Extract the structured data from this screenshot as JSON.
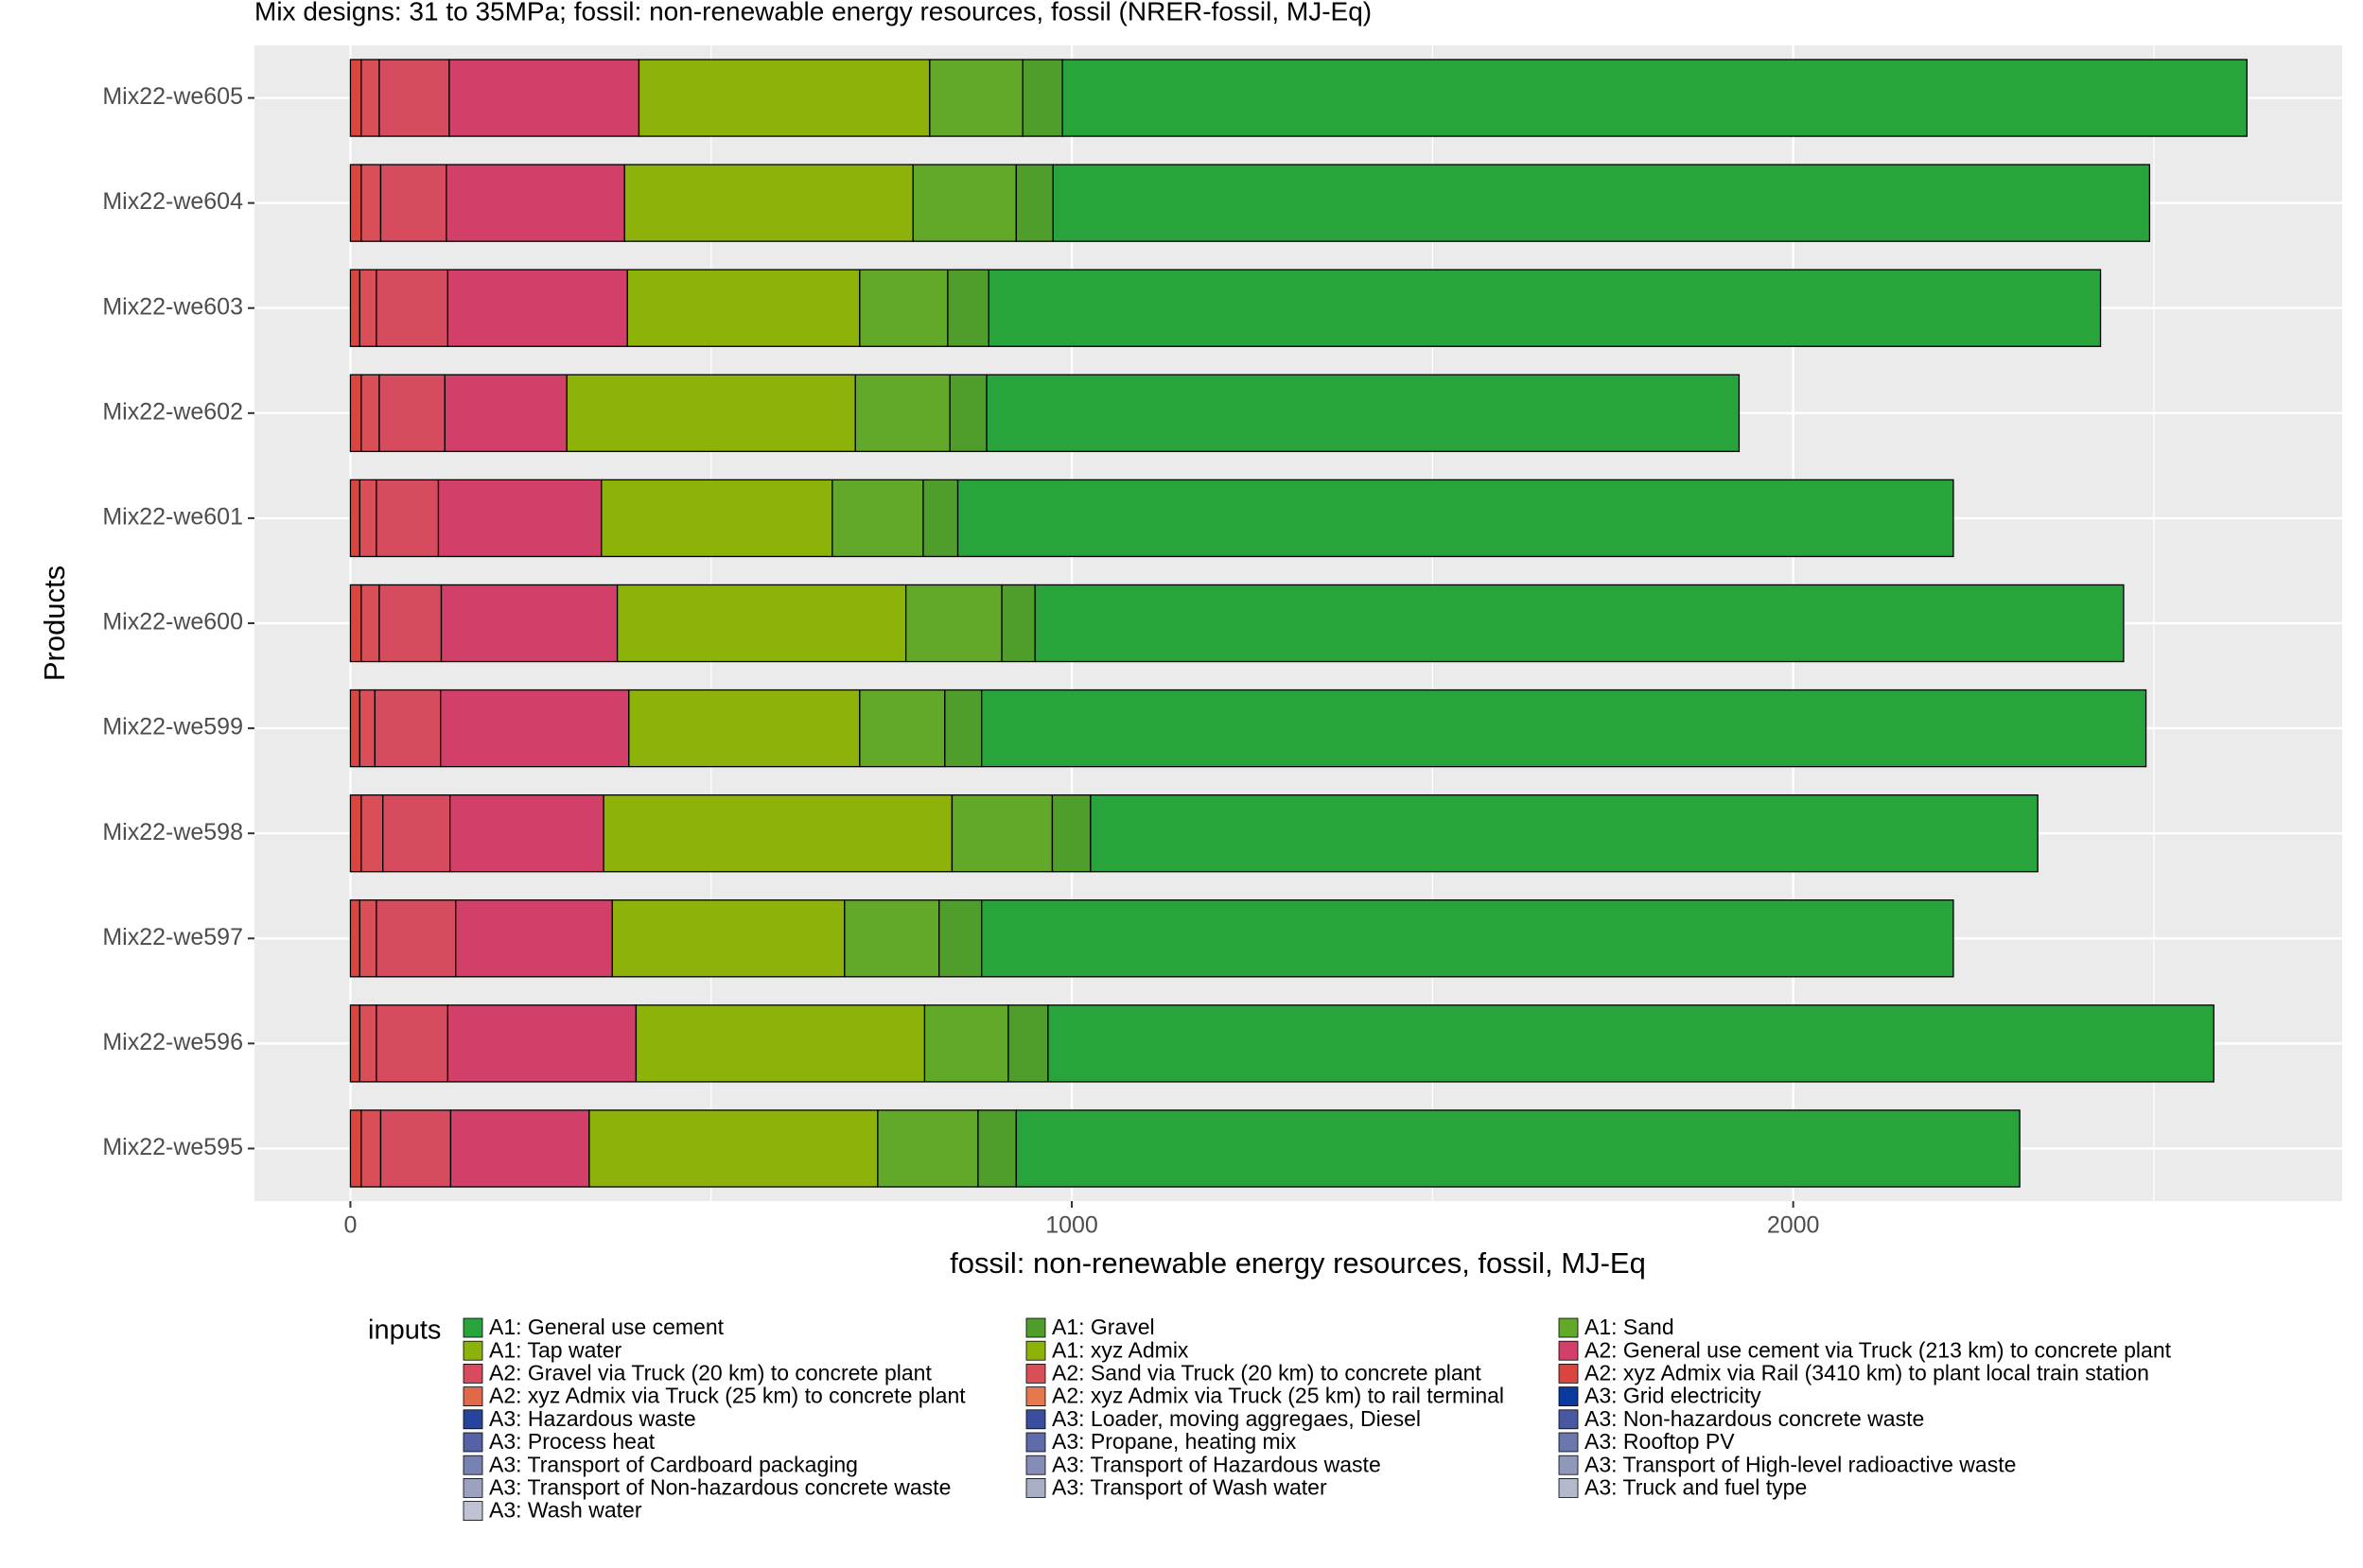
{
  "chart_data": {
    "type": "stacked-bar-horizontal",
    "title": "Mix designs: 31 to 35MPa; fossil: non-renewable energy resources, fossil (NRER-fossil, MJ-Eq)",
    "x_label": "fossil: non-renewable energy resources, fossil, MJ-Eq",
    "y_label": "Products",
    "legend_title": "inputs",
    "categories": [
      "Mix22-we605",
      "Mix22-we604",
      "Mix22-we603",
      "Mix22-we602",
      "Mix22-we601",
      "Mix22-we600",
      "Mix22-we599",
      "Mix22-we598",
      "Mix22-we597",
      "Mix22-we596",
      "Mix22-we595"
    ],
    "xlim": [
      -133,
      2761
    ],
    "xticks": [
      0,
      1000,
      2000
    ],
    "grid": true,
    "series": [
      {
        "name": "A1: General use cement",
        "color": "#29a33c",
        "values": [
          1642,
          1520,
          1541,
          1043,
          1380,
          1509,
          1614,
          1313,
          1347,
          1616,
          1391
        ]
      },
      {
        "name": "A1: Gravel",
        "color": "#4f9e2c",
        "values": [
          55,
          51,
          57,
          51,
          48,
          46,
          51,
          53,
          59,
          55,
          53
        ]
      },
      {
        "name": "A1: Sand",
        "color": "#62a92a",
        "values": [
          129,
          143,
          122,
          131,
          126,
          133,
          118,
          139,
          131,
          116,
          139
        ]
      },
      {
        "name": "A1: Tap water",
        "color": "#8bb20b",
        "values": [
          0,
          0,
          0,
          0,
          0,
          0,
          0,
          0,
          0,
          0,
          0
        ]
      },
      {
        "name": "A1: xyz Admix",
        "color": "#8db20a",
        "values": [
          403,
          400,
          322,
          400,
          320,
          400,
          320,
          483,
          322,
          400,
          400
        ]
      },
      {
        "name": "A2: General use cement via Truck (213 km) to concrete plant",
        "color": "#d2406a",
        "values": [
          263,
          247,
          249,
          169,
          226,
          244,
          261,
          213,
          217,
          261,
          192
        ]
      },
      {
        "name": "A2: Gravel via Truck (20 km) to concrete plant",
        "color": "#d64b5e",
        "values": [
          97,
          91,
          99,
          91,
          86,
          86,
          91,
          93,
          110,
          99,
          97
        ]
      },
      {
        "name": "A2: Sand via Truck (20 km) to concrete plant",
        "color": "#da4f57",
        "values": [
          25,
          27,
          23,
          25,
          23,
          25,
          21,
          30,
          23,
          23,
          27
        ]
      },
      {
        "name": "A2: xyz Admix via Rail (3410 km) to plant local train station",
        "color": "#d9463f",
        "values": [
          15,
          15,
          13,
          15,
          13,
          15,
          13,
          15,
          13,
          13,
          15
        ]
      },
      {
        "name": "A2: xyz Admix via Truck (25 km) to concrete plant",
        "color": "#e0694a",
        "values": [
          0,
          0,
          0,
          0,
          0,
          0,
          0,
          0,
          0,
          0,
          0
        ]
      },
      {
        "name": "A2: xyz Admix via Truck (25 km) to rail terminal",
        "color": "#e5784d",
        "values": [
          0,
          0,
          0,
          0,
          0,
          0,
          0,
          0,
          0,
          0,
          0
        ]
      },
      {
        "name": "A3: Grid electricity",
        "color": "#0a3a9f",
        "values": [
          0,
          0,
          0,
          0,
          0,
          0,
          0,
          0,
          0,
          0,
          0
        ]
      },
      {
        "name": "A3: Hazardous waste",
        "color": "#26449d",
        "values": [
          0,
          0,
          0,
          0,
          0,
          0,
          0,
          0,
          0,
          0,
          0
        ]
      },
      {
        "name": "A3: Loader, moving aggregaes, Diesel",
        "color": "#3a4ea0",
        "values": [
          0,
          0,
          0,
          0,
          0,
          0,
          0,
          0,
          0,
          0,
          0
        ]
      },
      {
        "name": "A3: Non-hazardous concrete waste",
        "color": "#4858a3",
        "values": [
          0,
          0,
          0,
          0,
          0,
          0,
          0,
          0,
          0,
          0,
          0
        ]
      },
      {
        "name": "A3: Process heat",
        "color": "#5563a6",
        "values": [
          0,
          0,
          0,
          0,
          0,
          0,
          0,
          0,
          0,
          0,
          0
        ]
      },
      {
        "name": "A3: Propane, heating mix",
        "color": "#606ca9",
        "values": [
          0,
          0,
          0,
          0,
          0,
          0,
          0,
          0,
          0,
          0,
          0
        ]
      },
      {
        "name": "A3: Rooftop PV",
        "color": "#6c77ad",
        "values": [
          0,
          0,
          0,
          0,
          0,
          0,
          0,
          0,
          0,
          0,
          0
        ]
      },
      {
        "name": "A3: Transport of Cardboard packaging",
        "color": "#7882b1",
        "values": [
          0,
          0,
          0,
          0,
          0,
          0,
          0,
          0,
          0,
          0,
          0
        ]
      },
      {
        "name": "A3: Transport of Hazardous waste",
        "color": "#858db6",
        "values": [
          0,
          0,
          0,
          0,
          0,
          0,
          0,
          0,
          0,
          0,
          0
        ]
      },
      {
        "name": "A3: Transport of High-level radioactive waste",
        "color": "#9098b9",
        "values": [
          0,
          0,
          0,
          0,
          0,
          0,
          0,
          0,
          0,
          0,
          0
        ]
      },
      {
        "name": "A3: Transport of Non-hazardous concrete waste",
        "color": "#9ca2be",
        "values": [
          0,
          0,
          0,
          0,
          0,
          0,
          0,
          0,
          0,
          0,
          0
        ]
      },
      {
        "name": "A3: Transport of Wash water",
        "color": "#a8aec4",
        "values": [
          0,
          0,
          0,
          0,
          0,
          0,
          0,
          0,
          0,
          0,
          0
        ]
      },
      {
        "name": "A3: Truck and fuel type",
        "color": "#b3b8ca",
        "values": [
          0,
          0,
          0,
          0,
          0,
          0,
          0,
          0,
          0,
          0,
          0
        ]
      },
      {
        "name": "A3: Wash water",
        "color": "#bfc2d2",
        "values": [
          0,
          0,
          0,
          0,
          0,
          0,
          0,
          0,
          0,
          0,
          0
        ]
      }
    ]
  }
}
